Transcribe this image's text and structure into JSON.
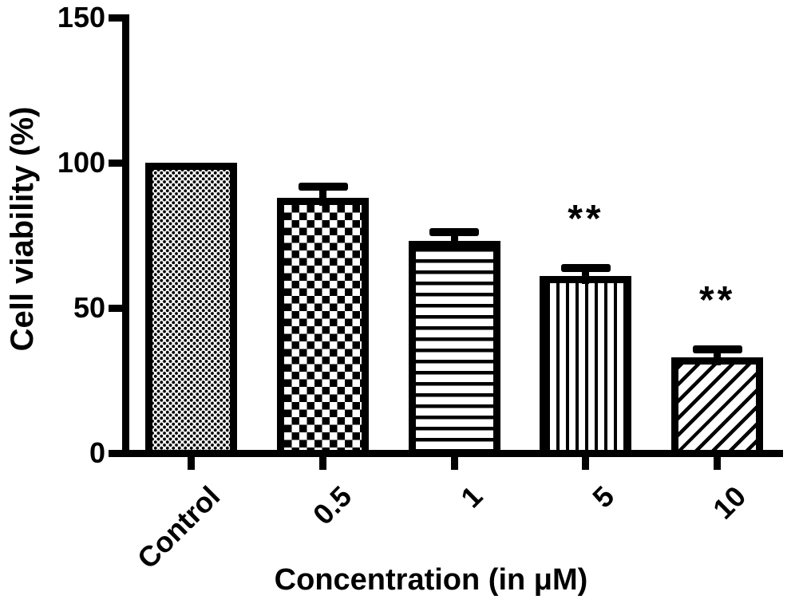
{
  "chart_data": {
    "type": "bar",
    "title": "",
    "xlabel": "Concentration (in μM)",
    "ylabel": "Cell viability (%)",
    "categories": [
      "Control",
      "0.5",
      "1",
      "5",
      "10"
    ],
    "values": [
      100,
      88,
      73,
      61,
      33
    ],
    "errors_plus": [
      0,
      5,
      4.5,
      4,
      4
    ],
    "annotations": [
      "",
      "",
      "",
      "**",
      "**"
    ],
    "patterns": [
      "dots",
      "checkerboard",
      "horizontal-lines",
      "vertical-lines",
      "diagonal-lines"
    ],
    "ylim": [
      0,
      150
    ],
    "yticks": [
      0,
      50,
      100,
      150
    ],
    "grid": "off",
    "legend": "none",
    "bar_outline_color": "#000000",
    "background_color": "#ffffff"
  }
}
